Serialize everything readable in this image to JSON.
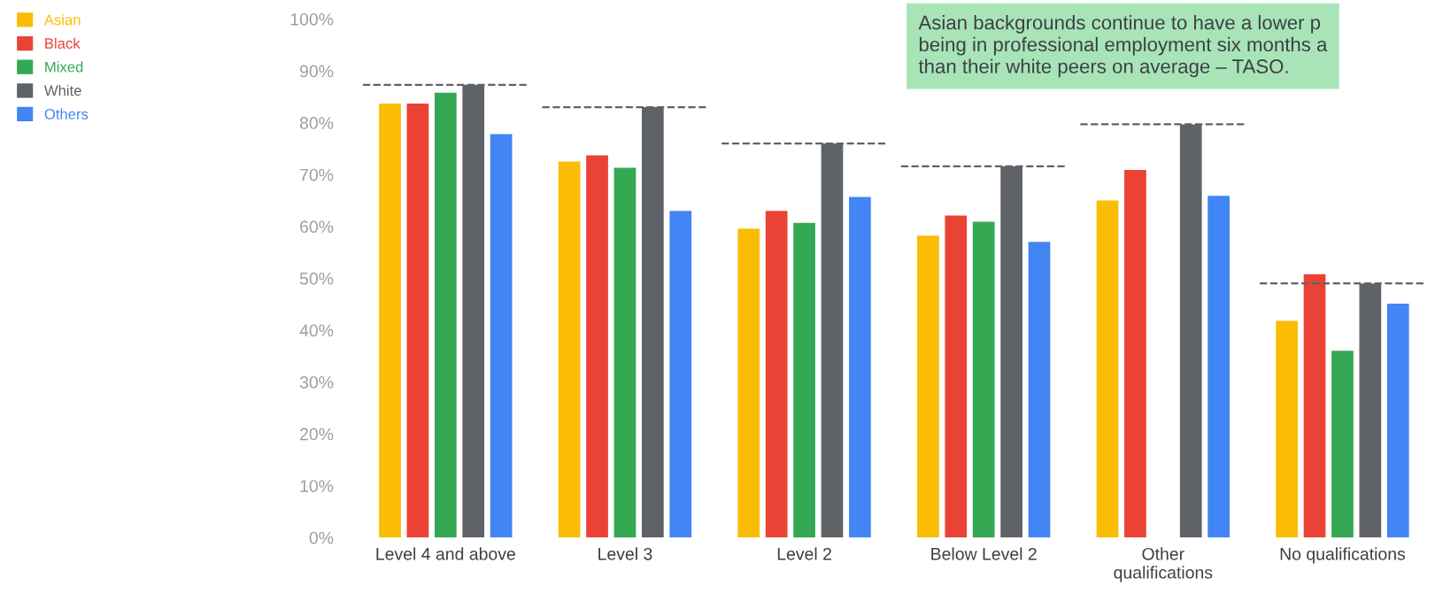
{
  "chart_data": {
    "type": "bar",
    "categories": [
      "Level 4 and above",
      "Level 3",
      "Level 2",
      "Below Level 2",
      "Other\nqualifications",
      "No qualifications"
    ],
    "series": [
      {
        "name": "Asian",
        "color": "#fbbc04",
        "values": [
          83.7,
          72.5,
          59.6,
          58.2,
          65.0,
          41.8
        ]
      },
      {
        "name": "Black",
        "color": "#ea4335",
        "values": [
          83.7,
          73.7,
          63.0,
          62.1,
          70.9,
          50.8
        ]
      },
      {
        "name": "Mixed",
        "color": "#34a853",
        "values": [
          85.8,
          71.3,
          60.7,
          60.9,
          null,
          36.0
        ]
      },
      {
        "name": "White",
        "color": "#5f6368",
        "values": [
          87.3,
          83.0,
          76.0,
          71.6,
          79.7,
          49.0
        ]
      },
      {
        "name": "Others",
        "color": "#4285f4",
        "values": [
          77.8,
          63.0,
          65.7,
          57.0,
          65.9,
          45.1
        ]
      }
    ],
    "ref_lines": [
      {
        "axis": "y",
        "value": 87.3,
        "color": "#5f6368",
        "line_style": "dashed"
      },
      {
        "axis": "y",
        "value": 83.0,
        "color": "#5f6368",
        "line_style": "dashed"
      },
      {
        "axis": "y",
        "value": 76.0,
        "color": "#5f6368",
        "line_style": "dashed"
      },
      {
        "axis": "y",
        "value": 71.6,
        "color": "#5f6368",
        "line_style": "dashed"
      },
      {
        "axis": "y",
        "value": 79.7,
        "color": "#5f6368",
        "line_style": "dashed"
      },
      {
        "axis": "y",
        "value": 49.0,
        "color": "#5f6368",
        "line_style": "dashed"
      }
    ],
    "ylim": [
      0,
      100
    ],
    "yticks": [
      {
        "value": 0,
        "label": "0%"
      },
      {
        "value": 10,
        "label": "10%"
      },
      {
        "value": 20,
        "label": "20%"
      },
      {
        "value": 30,
        "label": "30%"
      },
      {
        "value": 40,
        "label": "40%"
      },
      {
        "value": 50,
        "label": "50%"
      },
      {
        "value": 60,
        "label": "60%"
      },
      {
        "value": 70,
        "label": "70%"
      },
      {
        "value": 80,
        "label": "80%"
      },
      {
        "value": 90,
        "label": "90%"
      },
      {
        "value": 100,
        "label": "100%"
      }
    ],
    "grid": false,
    "legend": "top left",
    "annotations": [
      "Asian backgrounds continue to have a lower p\nbeing in professional employment six months a\nthan their white peers on average – TASO."
    ]
  }
}
